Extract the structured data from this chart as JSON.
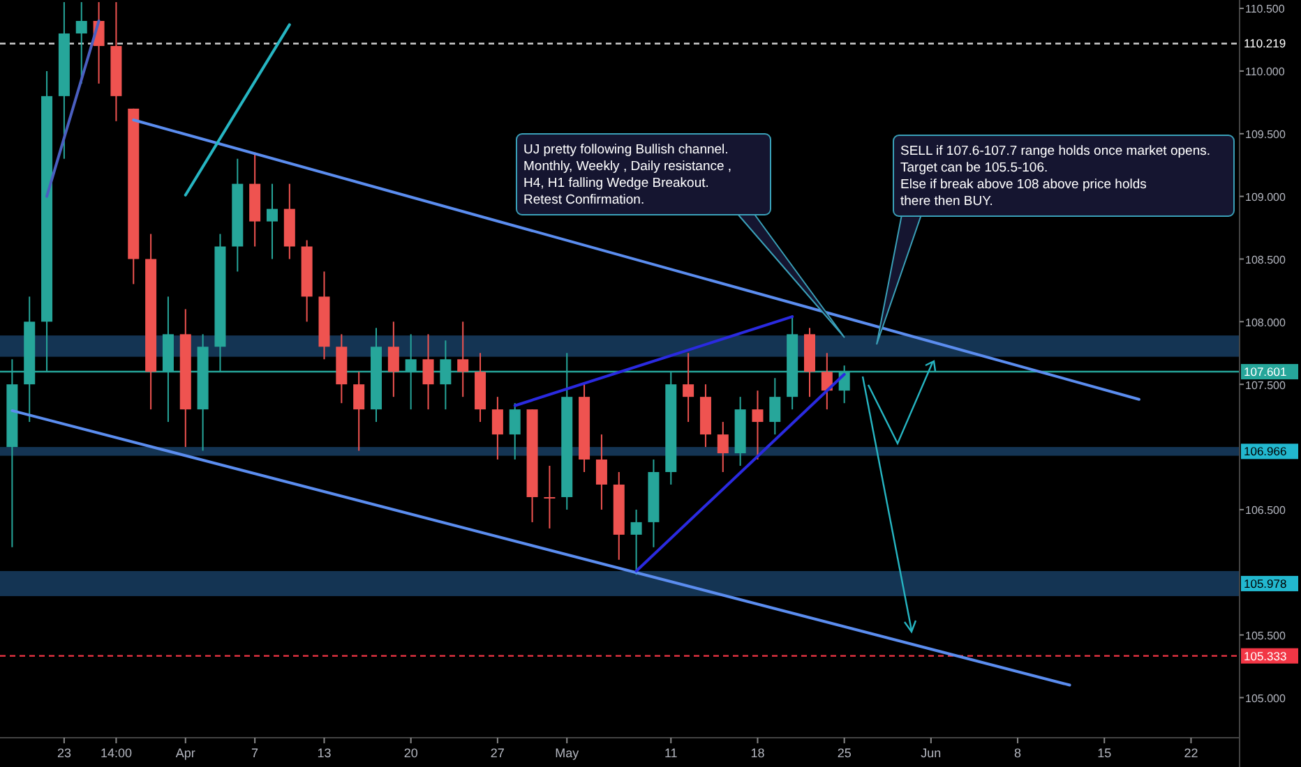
{
  "chart_data": {
    "type": "candlestick",
    "grid": false,
    "categories": [
      null,
      null,
      null,
      "23",
      null,
      null,
      "14:00",
      null,
      null,
      null,
      "Apr",
      null,
      null,
      null,
      "7",
      null,
      null,
      null,
      "13",
      null,
      null,
      null,
      null,
      "20",
      null,
      null,
      null,
      null,
      "27",
      null,
      null,
      null,
      "May",
      null,
      null,
      null,
      null,
      null,
      "11",
      null,
      null,
      null,
      null,
      "18",
      null,
      null,
      null,
      null,
      "25",
      null,
      null,
      null,
      null,
      "Jun",
      null,
      null,
      null,
      null,
      "8",
      null,
      null,
      null,
      null,
      "15",
      null,
      null,
      null,
      null,
      "22",
      null,
      null
    ],
    "ylim": [
      104.68,
      110.567
    ],
    "yticks": [
      {
        "value": 105,
        "label": "105.000"
      },
      {
        "value": 105.5,
        "label": "105.500"
      },
      {
        "value": 106.5,
        "label": "106.500"
      },
      {
        "value": 107.5,
        "label": "107.500"
      },
      {
        "value": 108,
        "label": "108.000"
      },
      {
        "value": 108.5,
        "label": "108.500"
      },
      {
        "value": 109,
        "label": "109.000"
      },
      {
        "value": 109.5,
        "label": "109.500"
      },
      {
        "value": 110,
        "label": "110.000"
      },
      {
        "value": 110.5,
        "label": "110.500"
      }
    ],
    "series": [
      {
        "ohlc": [
          [
            107.0,
            107.7,
            106.2,
            107.5
          ],
          [
            107.5,
            108.2,
            107.2,
            108.0
          ],
          [
            108.0,
            110.0,
            107.6,
            109.8
          ],
          [
            109.8,
            110.55,
            109.3,
            110.3
          ],
          [
            110.3,
            110.55,
            109.9,
            110.4
          ],
          [
            110.4,
            110.55,
            109.9,
            110.2
          ],
          [
            110.2,
            110.55,
            109.6,
            109.8
          ],
          [
            109.7,
            109.7,
            108.3,
            108.5
          ],
          [
            108.5,
            108.7,
            107.3,
            107.6
          ],
          [
            107.6,
            108.2,
            107.2,
            107.9
          ],
          [
            107.9,
            108.1,
            107.0,
            107.3
          ],
          [
            107.3,
            107.9,
            106.97,
            107.8
          ],
          [
            107.8,
            108.7,
            107.6,
            108.6
          ],
          [
            108.6,
            109.3,
            108.4,
            109.1
          ],
          [
            109.1,
            109.35,
            108.6,
            108.8
          ],
          [
            108.8,
            109.1,
            108.5,
            108.9
          ],
          [
            108.9,
            109.1,
            108.5,
            108.6
          ],
          [
            108.6,
            108.65,
            108.0,
            108.2
          ],
          [
            108.2,
            108.4,
            107.7,
            107.8
          ],
          [
            107.8,
            107.9,
            107.35,
            107.5
          ],
          [
            107.5,
            107.6,
            106.97,
            107.3
          ],
          [
            107.3,
            107.95,
            107.2,
            107.8
          ],
          [
            107.8,
            108.0,
            107.4,
            107.6
          ],
          [
            107.6,
            107.9,
            107.3,
            107.7
          ],
          [
            107.7,
            107.9,
            107.3,
            107.5
          ],
          [
            107.5,
            107.85,
            107.3,
            107.7
          ],
          [
            107.7,
            108.0,
            107.4,
            107.6
          ],
          [
            107.6,
            107.75,
            107.2,
            107.3
          ],
          [
            107.3,
            107.4,
            106.9,
            107.1
          ],
          [
            107.1,
            107.35,
            106.9,
            107.3
          ],
          [
            107.3,
            107.3,
            106.4,
            106.6
          ],
          [
            106.6,
            106.85,
            106.35,
            106.6
          ],
          [
            106.6,
            107.75,
            106.5,
            107.4
          ],
          [
            107.4,
            107.5,
            106.8,
            106.9
          ],
          [
            106.9,
            107.1,
            106.5,
            106.7
          ],
          [
            106.7,
            106.8,
            106.1,
            106.3
          ],
          [
            106.3,
            106.5,
            105.98,
            106.4
          ],
          [
            106.4,
            106.9,
            106.2,
            106.8
          ],
          [
            106.8,
            107.6,
            106.7,
            107.5
          ],
          [
            107.5,
            107.75,
            107.2,
            107.4
          ],
          [
            107.4,
            107.5,
            107.0,
            107.1
          ],
          [
            107.1,
            107.2,
            106.8,
            106.95
          ],
          [
            106.95,
            107.4,
            106.85,
            107.3
          ],
          [
            107.3,
            107.45,
            106.9,
            107.2
          ],
          [
            107.2,
            107.55,
            107.1,
            107.4
          ],
          [
            107.4,
            108.05,
            107.3,
            107.9
          ],
          [
            107.9,
            107.95,
            107.4,
            107.6
          ],
          [
            107.6,
            107.75,
            107.3,
            107.45
          ],
          [
            107.45,
            107.65,
            107.35,
            107.6
          ],
          null,
          null,
          null,
          null,
          null,
          null,
          null,
          null,
          null,
          null,
          null,
          null,
          null,
          null,
          null,
          null,
          null,
          null,
          null,
          null,
          null,
          null
        ],
        "colors": [
          "#26a69a",
          "#26a69a",
          "#26a69a",
          "#26a69a",
          "#26a69a",
          "#ef5350",
          "#ef5350",
          "#ef5350",
          "#ef5350",
          "#26a69a",
          "#ef5350",
          "#26a69a",
          "#26a69a",
          "#26a69a",
          "#ef5350",
          "#26a69a",
          "#ef5350",
          "#ef5350",
          "#ef5350",
          "#ef5350",
          "#ef5350",
          "#26a69a",
          "#ef5350",
          "#26a69a",
          "#ef5350",
          "#26a69a",
          "#ef5350",
          "#ef5350",
          "#ef5350",
          "#26a69a",
          "#ef5350",
          "#ef5350",
          "#26a69a",
          "#ef5350",
          "#ef5350",
          "#ef5350",
          "#26a69a",
          "#26a69a",
          "#26a69a",
          "#ef5350",
          "#ef5350",
          "#ef5350",
          "#26a69a",
          "#ef5350",
          "#26a69a",
          "#26a69a",
          "#ef5350",
          "#ef5350",
          "#26a69a",
          null,
          null,
          null,
          null,
          null,
          null,
          null,
          null,
          null,
          null,
          null,
          null,
          null,
          null,
          null,
          null,
          null,
          null,
          null,
          null,
          null,
          null
        ]
      },
      {
        "type": "line",
        "color": "#5b8def",
        "values": [
          null,
          null,
          null,
          null,
          null,
          null,
          null,
          109.61,
          null,
          null,
          null,
          null,
          null,
          null,
          null,
          null,
          null,
          null,
          null,
          null,
          null,
          null,
          null,
          null,
          null,
          null,
          null,
          null,
          null,
          null,
          null,
          null,
          null,
          null,
          null,
          null,
          null,
          null,
          null,
          null,
          null,
          null,
          null,
          null,
          null,
          null,
          null,
          null,
          null,
          null,
          null,
          null,
          null,
          null,
          null,
          null,
          null,
          null,
          null,
          null,
          null,
          null,
          null,
          null,
          null,
          107.38,
          null,
          null,
          null,
          null,
          null
        ]
      },
      {
        "type": "line",
        "color": "#5b8def",
        "values": [
          107.29,
          null,
          null,
          null,
          null,
          null,
          null,
          null,
          null,
          null,
          null,
          null,
          null,
          null,
          null,
          null,
          null,
          null,
          null,
          null,
          null,
          null,
          null,
          null,
          null,
          null,
          null,
          null,
          null,
          null,
          null,
          null,
          null,
          null,
          null,
          null,
          null,
          null,
          null,
          null,
          null,
          null,
          null,
          null,
          null,
          null,
          null,
          null,
          null,
          null,
          null,
          null,
          null,
          null,
          null,
          null,
          null,
          null,
          null,
          null,
          null,
          105.1,
          null,
          null,
          null,
          null,
          null,
          null,
          null,
          null,
          null
        ]
      },
      {
        "type": "line",
        "color": "#2a2ae0",
        "values": [
          null,
          null,
          null,
          null,
          null,
          null,
          null,
          null,
          null,
          null,
          null,
          null,
          null,
          null,
          null,
          null,
          null,
          null,
          null,
          null,
          null,
          null,
          null,
          null,
          null,
          null,
          null,
          null,
          null,
          107.33,
          null,
          null,
          null,
          null,
          null,
          null,
          null,
          null,
          null,
          null,
          null,
          null,
          null,
          null,
          null,
          108.04,
          null,
          null,
          null,
          null,
          null,
          null,
          null,
          null,
          null,
          null,
          null,
          null,
          null,
          null,
          null,
          null,
          null,
          null,
          null,
          null,
          null,
          null,
          null,
          null,
          null
        ]
      },
      {
        "type": "line",
        "color": "#2a2ae0",
        "values": [
          null,
          null,
          null,
          null,
          null,
          null,
          null,
          null,
          null,
          null,
          null,
          null,
          null,
          null,
          null,
          null,
          null,
          null,
          null,
          null,
          null,
          null,
          null,
          null,
          null,
          null,
          null,
          null,
          null,
          null,
          null,
          null,
          null,
          null,
          null,
          null,
          106.01,
          null,
          null,
          null,
          null,
          null,
          null,
          null,
          null,
          null,
          null,
          null,
          107.58,
          null,
          null,
          null,
          null,
          null,
          null,
          null,
          null,
          null,
          null,
          null,
          null,
          null,
          null,
          null,
          null,
          null,
          null,
          null,
          null,
          null,
          null
        ]
      },
      {
        "type": "line",
        "color": "#26b5c2",
        "values": [
          null,
          null,
          null,
          null,
          null,
          null,
          null,
          null,
          null,
          null,
          109.01,
          null,
          null,
          null,
          null,
          null,
          110.37,
          null,
          null,
          null,
          null,
          null,
          null,
          null,
          null,
          null,
          null,
          null,
          null,
          null,
          null,
          null,
          null,
          null,
          null,
          null,
          null,
          null,
          null,
          null,
          null,
          null,
          null,
          null,
          null,
          null,
          null,
          null,
          null,
          null,
          null,
          null,
          null,
          null,
          null,
          null,
          null,
          null,
          null,
          null,
          null,
          null,
          null,
          null,
          null,
          null,
          null,
          null,
          null,
          null,
          null
        ]
      },
      {
        "type": "line",
        "color": "#4a5fc0",
        "values": [
          null,
          null,
          109.0,
          null,
          null,
          110.4,
          null,
          null,
          null,
          null,
          null,
          null,
          null,
          null,
          null,
          null,
          null,
          null,
          null,
          null,
          null,
          null,
          null,
          null,
          null,
          null,
          null,
          null,
          null,
          null,
          null,
          null,
          null,
          null,
          null,
          null,
          null,
          null,
          null,
          null,
          null,
          null,
          null,
          null,
          null,
          null,
          null,
          null,
          null,
          null,
          null,
          null,
          null,
          null,
          null,
          null,
          null,
          null,
          null,
          null,
          null,
          null,
          null,
          null,
          null,
          null,
          null,
          null,
          null,
          null,
          null
        ]
      }
    ],
    "ref_lines": [
      {
        "axis": "y",
        "value": 110.219,
        "label": "110.219",
        "color": "#d0d0d0",
        "line_style": "dashed"
      },
      {
        "axis": "y",
        "value": 107.601,
        "label": "107.601",
        "color": "#26a69a",
        "line_style": "solid"
      },
      {
        "axis": "y",
        "value": 105.333,
        "label": "105.333",
        "color": "#f23645",
        "line_style": "dashed"
      }
    ],
    "bands": [
      {
        "axis": "y",
        "from": 107.72,
        "to": 107.89,
        "color": "#163a5c"
      },
      {
        "axis": "y",
        "from": 106.93,
        "to": 107.0,
        "label": "106.966",
        "color": "#163a5c"
      },
      {
        "axis": "y",
        "from": 105.81,
        "to": 106.01,
        "label": "105.978",
        "color": "#163a5c"
      }
    ],
    "annotations": [
      "UJ pretty following Bullish channel.\nMonthly, Weekly , Daily resistance ,\nH4, H1 falling Wedge Breakout.\nRetest Confirmation.",
      "SELL if 107.6-107.7 range holds once market opens.\nTarget can be 105.5-106.\nElse if break above 108 above price holds\nthere then BUY."
    ]
  }
}
